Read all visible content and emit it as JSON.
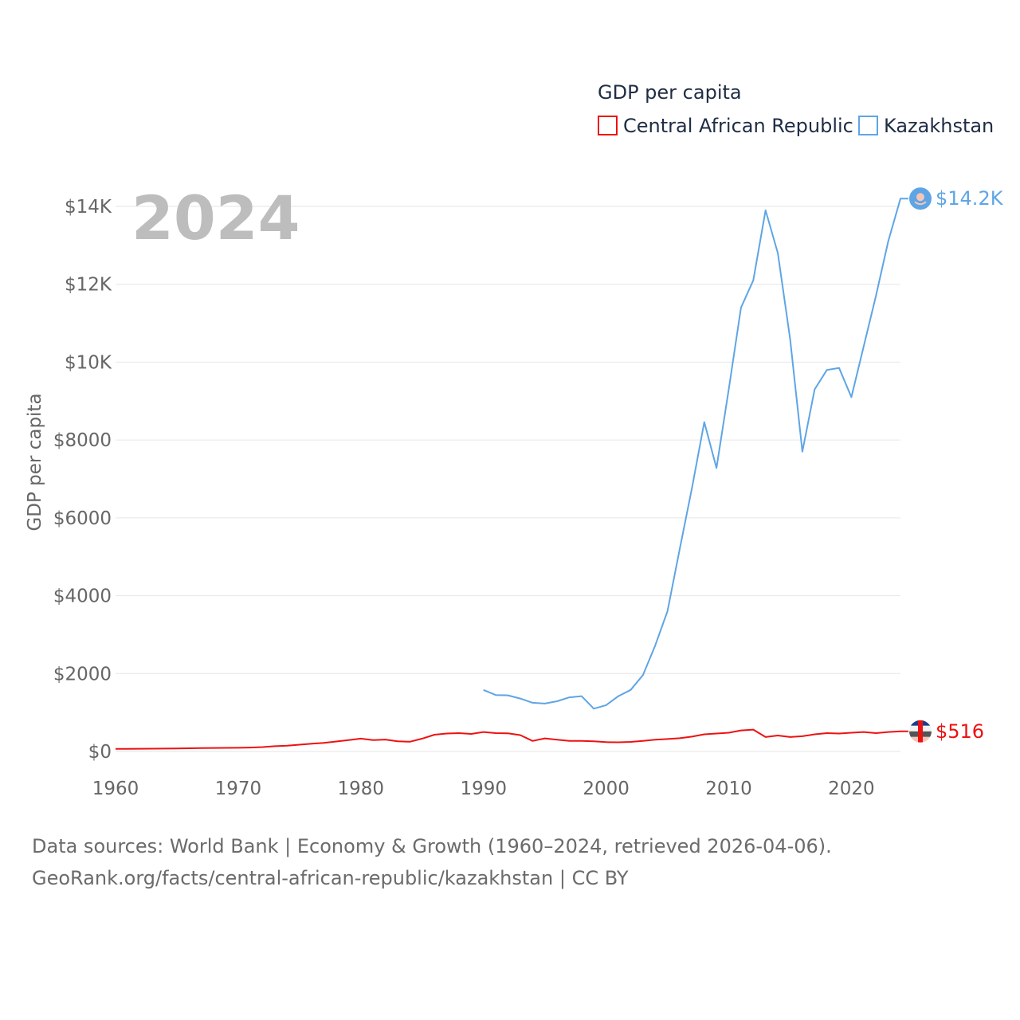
{
  "chart_data": {
    "type": "line",
    "title": "GDP per capita",
    "ylabel": "GDP per capita",
    "xlabel": "",
    "year_label": "2024",
    "xlim": [
      1960,
      2024
    ],
    "ylim": [
      0,
      14000
    ],
    "x_ticks": [
      1960,
      1970,
      1980,
      1990,
      2000,
      2010,
      2020
    ],
    "y_ticks": [
      {
        "value": 0,
        "label": "$0"
      },
      {
        "value": 2000,
        "label": "$2000"
      },
      {
        "value": 4000,
        "label": "$4000"
      },
      {
        "value": 6000,
        "label": "$6000"
      },
      {
        "value": 8000,
        "label": "$8000"
      },
      {
        "value": 10000,
        "label": "$10K"
      },
      {
        "value": 12000,
        "label": "$12K"
      },
      {
        "value": 14000,
        "label": "$14K"
      }
    ],
    "legend_placement": "top-right",
    "series": [
      {
        "name": "Central African Republic",
        "color": "#ee1111",
        "end_label": "$516",
        "x": [
          1960,
          1961,
          1962,
          1963,
          1964,
          1965,
          1966,
          1967,
          1968,
          1969,
          1970,
          1971,
          1972,
          1973,
          1974,
          1975,
          1976,
          1977,
          1978,
          1979,
          1980,
          1981,
          1982,
          1983,
          1984,
          1985,
          1986,
          1987,
          1988,
          1989,
          1990,
          1991,
          1992,
          1993,
          1994,
          1995,
          1996,
          1997,
          1998,
          1999,
          2000,
          2001,
          2002,
          2003,
          2004,
          2005,
          2006,
          2007,
          2008,
          2009,
          2010,
          2011,
          2012,
          2013,
          2014,
          2015,
          2016,
          2017,
          2018,
          2019,
          2020,
          2021,
          2022,
          2023,
          2024
        ],
        "values": [
          67,
          68,
          70,
          72,
          74,
          78,
          82,
          85,
          90,
          92,
          95,
          100,
          112,
          135,
          148,
          175,
          200,
          220,
          255,
          290,
          330,
          290,
          305,
          260,
          250,
          330,
          430,
          460,
          470,
          450,
          500,
          470,
          465,
          420,
          270,
          335,
          300,
          270,
          270,
          260,
          240,
          235,
          245,
          270,
          300,
          320,
          340,
          380,
          440,
          460,
          480,
          540,
          560,
          370,
          410,
          370,
          390,
          440,
          470,
          460,
          480,
          500,
          470,
          500,
          516
        ]
      },
      {
        "name": "Kazakhstan",
        "color": "#5ea5e5",
        "end_label": "$14.2K",
        "x": [
          1990,
          1991,
          1992,
          1993,
          1994,
          1995,
          1996,
          1997,
          1998,
          1999,
          2000,
          2001,
          2002,
          2003,
          2004,
          2005,
          2006,
          2007,
          2008,
          2009,
          2010,
          2011,
          2012,
          2013,
          2014,
          2015,
          2016,
          2017,
          2018,
          2019,
          2020,
          2021,
          2022,
          2023,
          2024
        ],
        "values": [
          1580,
          1450,
          1440,
          1360,
          1250,
          1230,
          1290,
          1390,
          1420,
          1100,
          1190,
          1420,
          1580,
          1960,
          2720,
          3600,
          5200,
          6770,
          8460,
          7280,
          9300,
          11400,
          12100,
          13900,
          12800,
          10600,
          7700,
          9300,
          9800,
          9850,
          9100,
          10400,
          11700,
          13100,
          14200
        ]
      }
    ]
  },
  "source": {
    "line1": "Data sources: World Bank | Economy & Growth (1960–2024, retrieved 2026-04-06).",
    "line2": "GeoRank.org/facts/central-african-republic/kazakhstan | CC BY"
  }
}
